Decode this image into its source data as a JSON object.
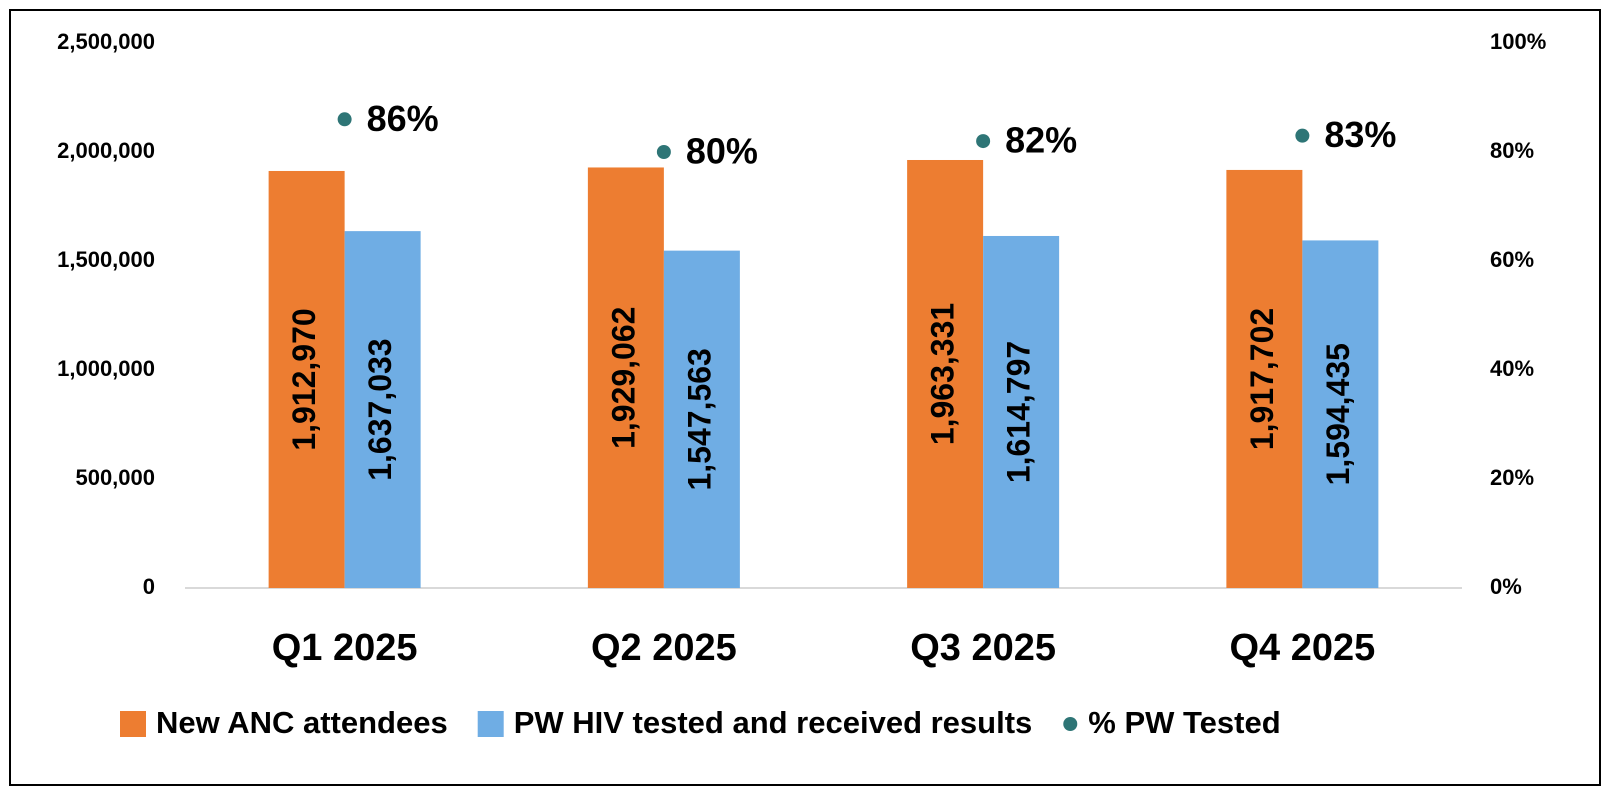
{
  "chart_data": {
    "type": "bar",
    "categories": [
      "Q1 2025",
      "Q2 2025",
      "Q3 2025",
      "Q4 2025"
    ],
    "series": [
      {
        "name": "New ANC attendees",
        "color": "#ed7d31",
        "values": [
          1912970,
          1929062,
          1963331,
          1917702
        ],
        "value_labels": [
          "1,912,970",
          "1,929,062",
          "1,963,331",
          "1,917,702"
        ]
      },
      {
        "name": "PW HIV tested and received results",
        "color": "#6fade4",
        "values": [
          1637033,
          1547563,
          1614797,
          1594435
        ],
        "value_labels": [
          "1,637,033",
          "1,547,563",
          "1,614,797",
          "1,594,435"
        ]
      },
      {
        "name": "% PW Tested",
        "type": "scatter",
        "axis": "y2",
        "color": "#2e7576",
        "values": [
          86,
          80,
          82,
          83
        ],
        "value_labels": [
          "86%",
          "80%",
          "82%",
          "83%"
        ]
      }
    ],
    "ylim": [
      0,
      2500000
    ],
    "yticks": [
      0,
      {
        "value": 500000,
        "label": "500,000"
      },
      {
        "value": 1000000,
        "label": "1,000,000"
      },
      {
        "value": 1500000,
        "label": "1,500,000"
      },
      {
        "value": 2000000,
        "label": "2,000,000"
      },
      {
        "value": 2500000,
        "label": "2,500,000"
      }
    ],
    "y2lim": [
      0,
      100
    ],
    "y2ticks": [
      {
        "value": 0,
        "label": "0%"
      },
      {
        "value": 20,
        "label": "20%"
      },
      {
        "value": 40,
        "label": "40%"
      },
      {
        "value": 60,
        "label": "60%"
      },
      {
        "value": 80,
        "label": "80%"
      },
      {
        "value": 100,
        "label": "100%"
      }
    ],
    "legend": "bottom",
    "grid": false
  }
}
